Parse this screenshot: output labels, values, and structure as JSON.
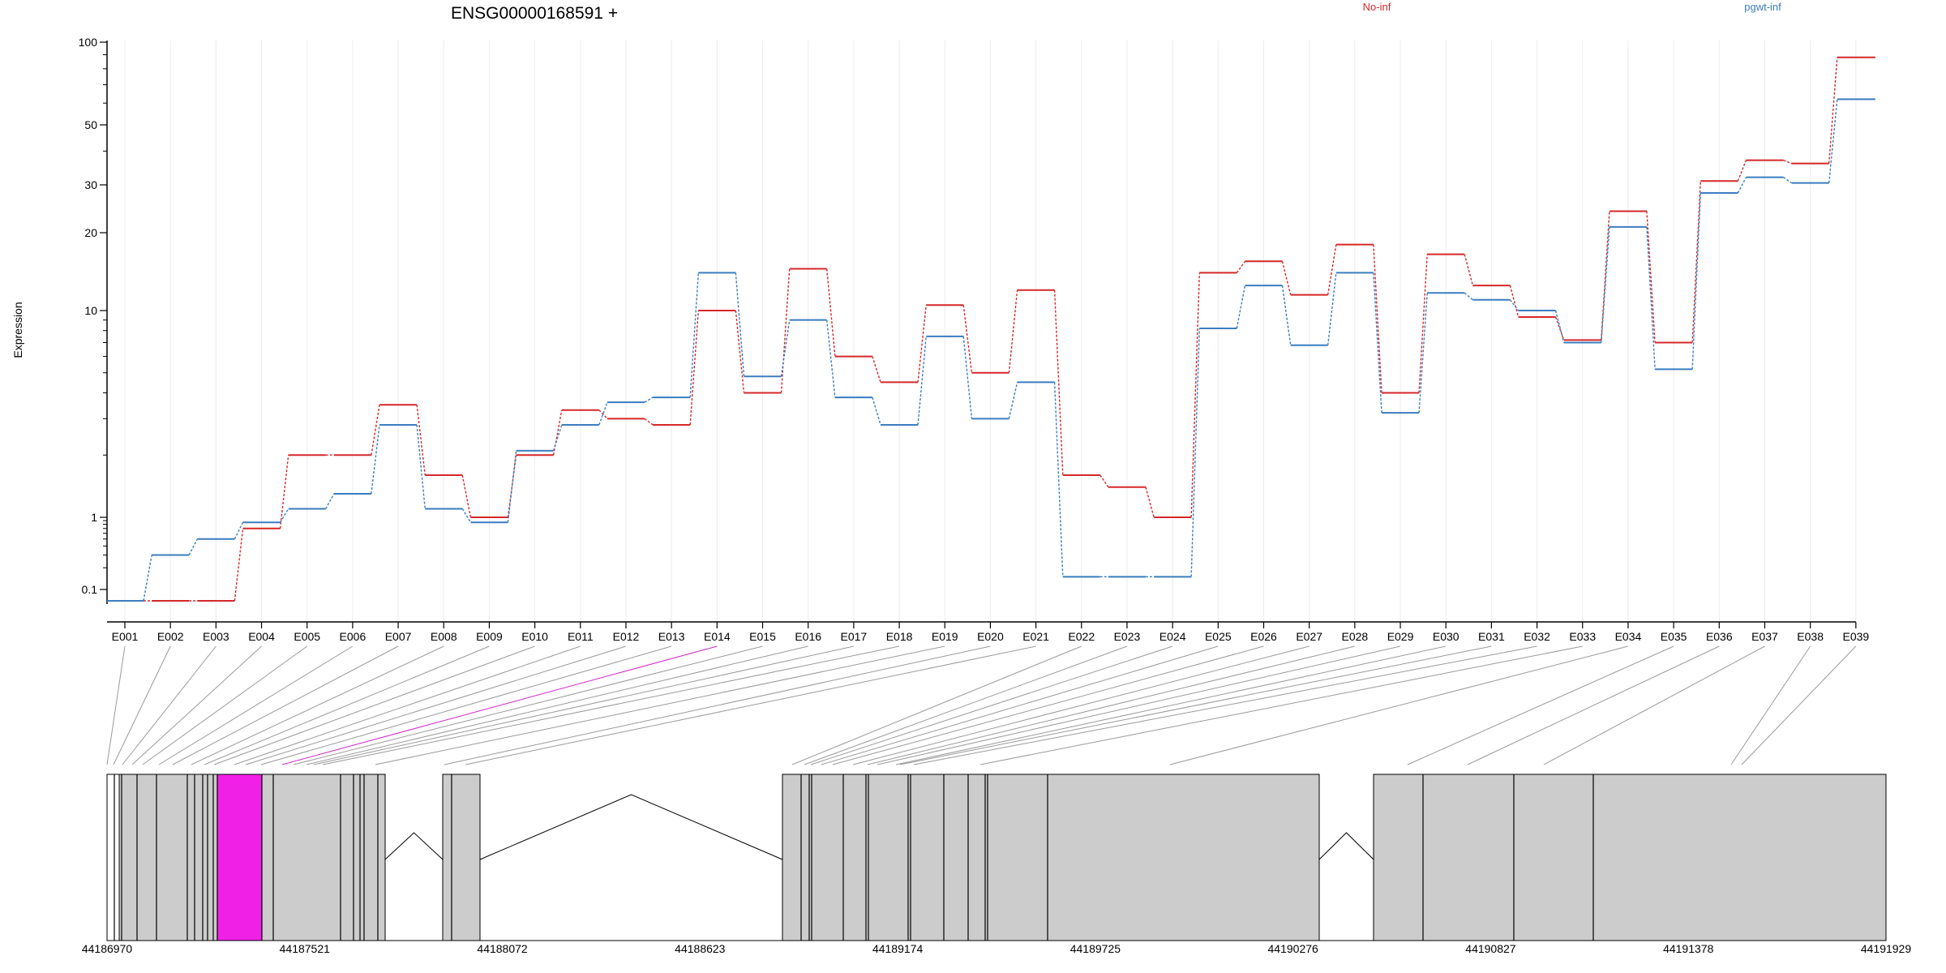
{
  "chart_data": {
    "type": "line",
    "title": "ENSG00000168591 +",
    "ylabel": "Expression",
    "xlabel": "",
    "y_scale": "log-like",
    "ylim": [
      0.07,
      100
    ],
    "y_ticks": [
      {
        "label": "100",
        "value": 100
      },
      {
        "label": "50",
        "value": 50
      },
      {
        "label": "30",
        "value": 30
      },
      {
        "label": "20",
        "value": 20
      },
      {
        "label": "10",
        "value": 10
      },
      {
        "label": "1",
        "value": 1
      },
      {
        "label": "0.1",
        "value": 0.1
      }
    ],
    "categories": [
      "E001",
      "E002",
      "E003",
      "E004",
      "E005",
      "E006",
      "E007",
      "E008",
      "E009",
      "E010",
      "E011",
      "E012",
      "E013",
      "E014",
      "E015",
      "E016",
      "E017",
      "E018",
      "E019",
      "E020",
      "E021",
      "E022",
      "E023",
      "E024",
      "E025",
      "E026",
      "E027",
      "E028",
      "E029",
      "E030",
      "E031",
      "E032",
      "E033",
      "E034",
      "E035",
      "E036",
      "E037",
      "E038",
      "E039"
    ],
    "highlighted_exon": "E014",
    "series": [
      {
        "name": "No-inf",
        "color": "#d62728",
        "values": [
          0.07,
          0.07,
          0.07,
          0.7,
          2.0,
          2.0,
          3.5,
          1.6,
          1.0,
          2.0,
          3.3,
          3.0,
          2.8,
          10,
          4.0,
          14.5,
          6.0,
          4.5,
          10.5,
          5.0,
          12.0,
          1.6,
          1.4,
          1.0,
          14.0,
          15.5,
          11.5,
          18.0,
          4.0,
          16.5,
          12.5,
          9.3,
          7.2,
          24.0,
          7.0,
          31.0,
          37.0,
          36.0,
          88.0
        ]
      },
      {
        "name": "pgwt-inf",
        "color": "#3a7dc1",
        "values": [
          0.07,
          0.3,
          0.5,
          0.85,
          1.1,
          1.3,
          2.8,
          1.1,
          0.85,
          2.1,
          2.8,
          3.6,
          3.8,
          14.0,
          4.8,
          9.0,
          3.8,
          2.8,
          7.5,
          3.0,
          4.5,
          0.15,
          0.15,
          0.15,
          8.2,
          12.5,
          6.8,
          14.0,
          3.2,
          11.7,
          11.0,
          10.0,
          7.0,
          21.0,
          5.2,
          28.0,
          32.0,
          30.5,
          62.0
        ]
      }
    ],
    "genome_axis": {
      "ticks": [
        "44186970",
        "44187521",
        "44188072",
        "44188623",
        "44189174",
        "44189725",
        "44190276",
        "44190827",
        "44191378",
        "44191929"
      ],
      "range": [
        44186970,
        44191929
      ]
    }
  }
}
